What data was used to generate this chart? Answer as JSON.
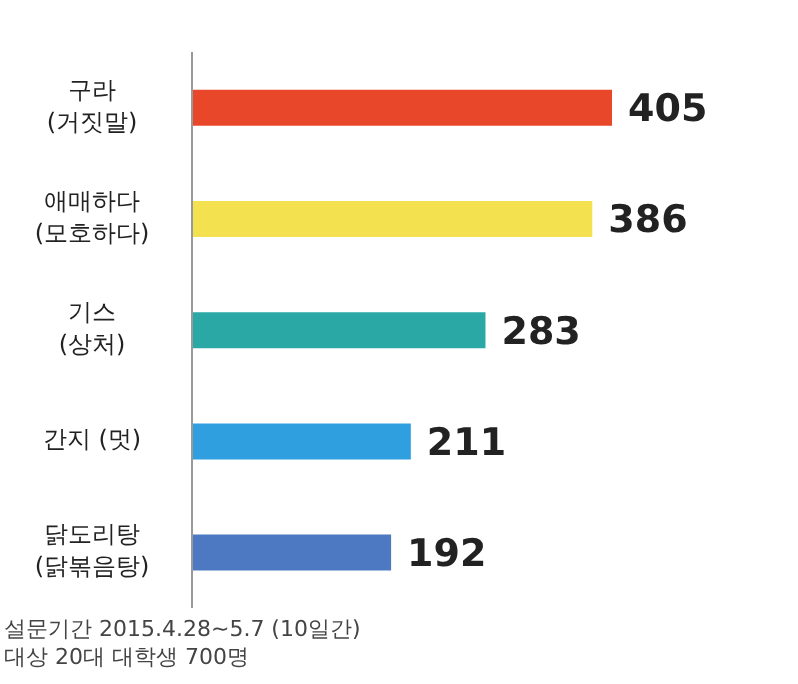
{
  "chart_data": {
    "type": "bar",
    "orientation": "horizontal",
    "categories": [
      "구라\n(거짓말)",
      "애매하다\n(모호하다)",
      "기스\n(상처)",
      "간지 (멋)",
      "닭도리탕\n(닭볶음탕)"
    ],
    "values": [
      405,
      386,
      283,
      211,
      192
    ],
    "colors": [
      "#e8472a",
      "#f3e150",
      "#2aa8a6",
      "#2f9fe0",
      "#4c79c1"
    ],
    "data_labels": true,
    "annotations": [
      "설문기간 2015.4.28~5.7 (10일간)",
      "대상 20대 대학생 700명"
    ]
  }
}
